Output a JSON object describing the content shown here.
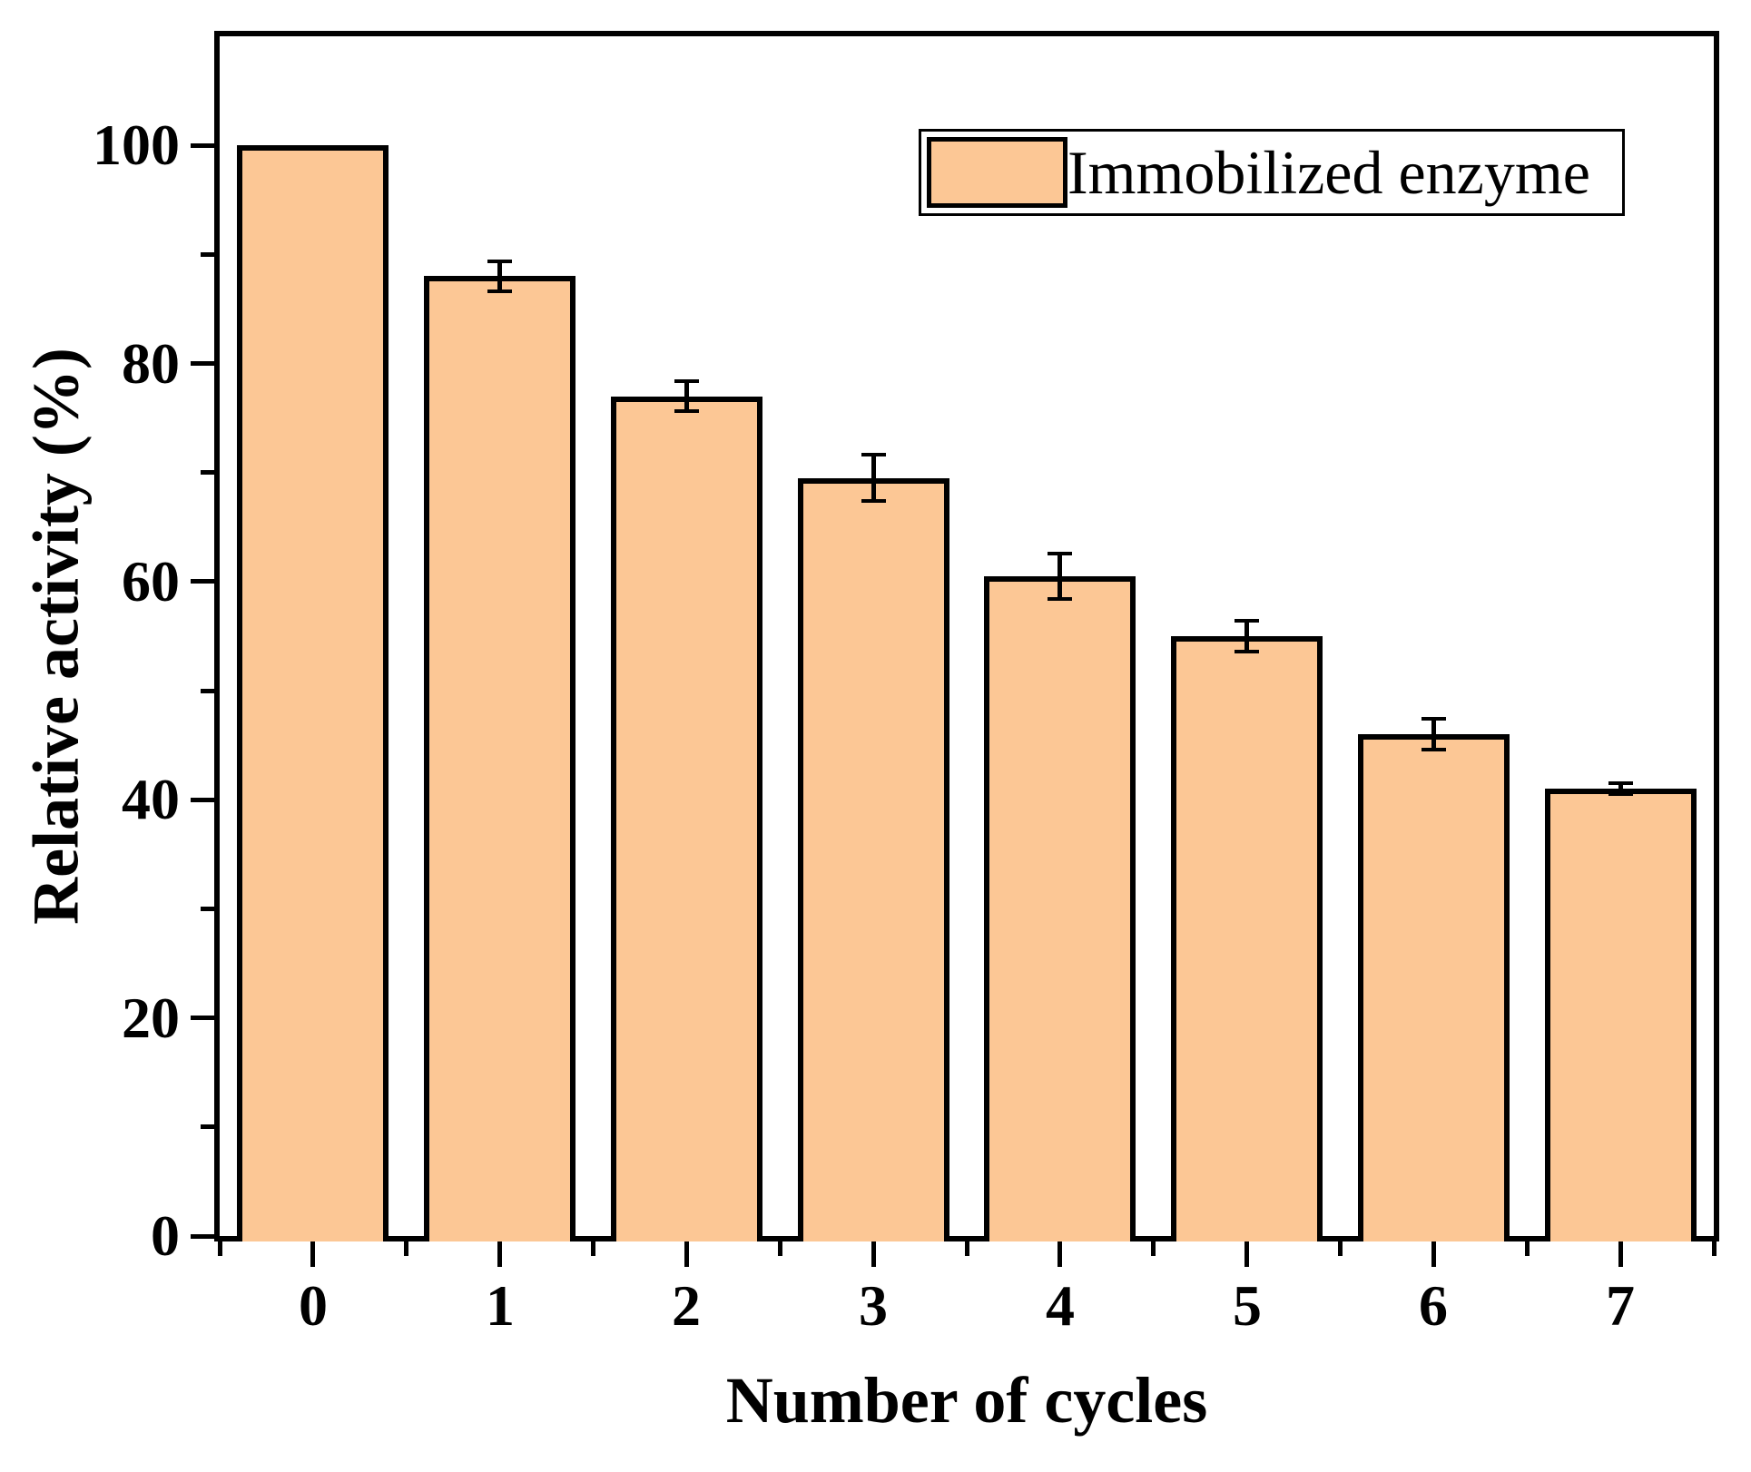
{
  "figure": {
    "background": "#ffffff"
  },
  "colors": {
    "bar_fill": "#FCC795",
    "bar_border": "#000000",
    "axis": "#000000",
    "text": "#000000"
  },
  "legend": {
    "label": "Immobilized enzyme"
  },
  "x_axis": {
    "title": "Number of cycles",
    "tick_labels": [
      "0",
      "1",
      "2",
      "3",
      "4",
      "5",
      "6",
      "7"
    ]
  },
  "y_axis": {
    "title": "Relative activity (%)",
    "tick_labels": [
      "0",
      "20",
      "40",
      "60",
      "80",
      "100"
    ],
    "major_ticks": [
      0,
      20,
      40,
      60,
      80,
      100
    ],
    "minor_ticks": [
      10,
      30,
      50,
      70,
      90
    ],
    "min": 0,
    "max": 110
  },
  "chart_data": {
    "type": "bar",
    "title": "",
    "xlabel": "Number of cycles",
    "ylabel": "Relative activity (%)",
    "categories": [
      0,
      1,
      2,
      3,
      4,
      5,
      6,
      7
    ],
    "series": [
      {
        "name": "Immobilized enzyme",
        "values": [
          100,
          88,
          77,
          69.5,
          60.5,
          55,
          46,
          41
        ],
        "error_bars": [
          0,
          1.4,
          1.4,
          2.1,
          2.1,
          1.4,
          1.4,
          0.5
        ],
        "color": "#FCC795"
      }
    ],
    "ylim": [
      0,
      110
    ],
    "grid": false,
    "legend_position": "top-right"
  }
}
